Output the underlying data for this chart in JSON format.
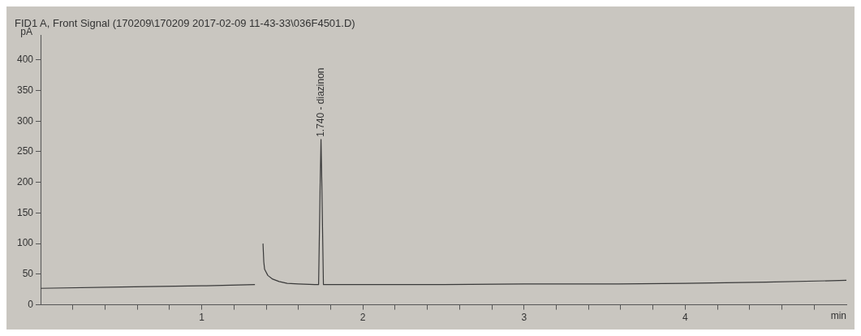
{
  "chart_data": {
    "type": "line",
    "title": "FID1 A, Front Signal (170209\\170209 2017-02-09 11-43-33\\036F4501.D)",
    "xlabel": "min",
    "ylabel": "pA",
    "series": [
      {
        "color": "#3a3a3a",
        "x": [
          0,
          0.5,
          1.0,
          1.33,
          1.335,
          1.375,
          1.38,
          1.385,
          1.39,
          1.41,
          1.44,
          1.48,
          1.53,
          1.6,
          1.7,
          1.725,
          1.735,
          1.74,
          1.745,
          1.755,
          2.0,
          2.5,
          3.0,
          3.5,
          4.0,
          4.5,
          5.0
        ],
        "values": [
          27,
          29,
          31,
          33,
          null,
          null,
          100,
          70,
          58,
          48,
          42,
          38,
          35,
          34,
          33,
          33,
          200,
          270,
          200,
          33,
          33,
          33,
          34,
          34,
          35,
          37,
          40
        ]
      }
    ],
    "annotations": [
      {
        "text": "1.740 - diazinon",
        "x": 1.74,
        "y": 270
      }
    ],
    "xlim": [
      0,
      5
    ],
    "xticks": [
      {
        "value": 0.2,
        "label": null
      },
      {
        "value": 0.4,
        "label": null
      },
      {
        "value": 0.6,
        "label": null
      },
      {
        "value": 0.8,
        "label": null
      },
      1,
      {
        "value": 1.2,
        "label": null
      },
      {
        "value": 1.4,
        "label": null
      },
      {
        "value": 1.6,
        "label": null
      },
      {
        "value": 1.8,
        "label": null
      },
      2,
      {
        "value": 2.2,
        "label": null
      },
      {
        "value": 2.4,
        "label": null
      },
      {
        "value": 2.6,
        "label": null
      },
      {
        "value": 2.8,
        "label": null
      },
      3,
      {
        "value": 3.2,
        "label": null
      },
      {
        "value": 3.4,
        "label": null
      },
      {
        "value": 3.6,
        "label": null
      },
      {
        "value": 3.8,
        "label": null
      },
      4,
      {
        "value": 4.2,
        "label": null
      },
      {
        "value": 4.4,
        "label": null
      },
      {
        "value": 4.6,
        "label": null
      },
      {
        "value": 4.8,
        "label": null
      }
    ],
    "ylim": [
      0,
      440
    ],
    "yticks": [
      0,
      50,
      100,
      150,
      200,
      250,
      300,
      350,
      400
    ],
    "grid": false,
    "legend": false,
    "marker": "none",
    "line_style": "solid"
  }
}
